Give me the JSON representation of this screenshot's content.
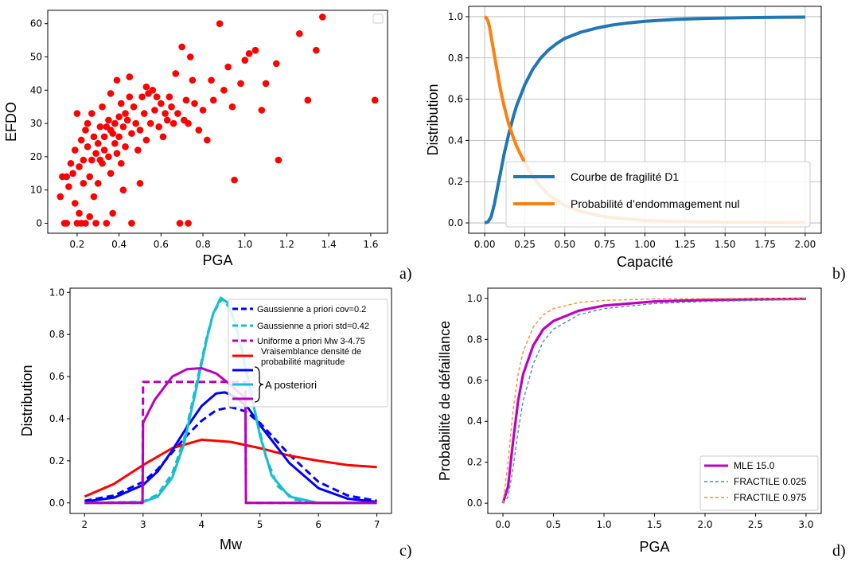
{
  "chart_data": [
    {
      "panel_label": "a)",
      "type": "scatter",
      "xlabel": "PGA",
      "ylabel": "EFDO",
      "xlim": [
        0.06,
        1.68
      ],
      "ylim": [
        -3,
        64
      ],
      "xticks": [
        "0.2",
        "0.4",
        "0.6",
        "0.8",
        "1.0",
        "1.2",
        "1.4",
        "1.6"
      ],
      "yticks": [
        "0",
        "10",
        "20",
        "30",
        "40",
        "50",
        "60"
      ],
      "grid": false,
      "marker_color": "#ff0000",
      "legend": "empty box, top-right",
      "series": [
        {
          "points": [
            [
              0.12,
              8
            ],
            [
              0.13,
              14
            ],
            [
              0.14,
              0
            ],
            [
              0.15,
              0
            ],
            [
              0.15,
              14
            ],
            [
              0.16,
              11
            ],
            [
              0.17,
              18
            ],
            [
              0.18,
              15
            ],
            [
              0.19,
              22
            ],
            [
              0.19,
              6
            ],
            [
              0.2,
              0
            ],
            [
              0.2,
              33
            ],
            [
              0.21,
              17
            ],
            [
              0.21,
              3
            ],
            [
              0.22,
              25
            ],
            [
              0.22,
              0
            ],
            [
              0.23,
              12
            ],
            [
              0.23,
              19
            ],
            [
              0.24,
              28
            ],
            [
              0.24,
              0
            ],
            [
              0.25,
              23
            ],
            [
              0.25,
              30
            ],
            [
              0.26,
              14
            ],
            [
              0.26,
              2
            ],
            [
              0.27,
              19
            ],
            [
              0.27,
              33
            ],
            [
              0.28,
              26
            ],
            [
              0.28,
              8
            ],
            [
              0.29,
              21
            ],
            [
              0.29,
              0
            ],
            [
              0.3,
              24
            ],
            [
              0.3,
              12
            ],
            [
              0.31,
              29
            ],
            [
              0.31,
              19
            ],
            [
              0.32,
              18
            ],
            [
              0.32,
              35
            ],
            [
              0.33,
              26
            ],
            [
              0.33,
              22
            ],
            [
              0.34,
              29
            ],
            [
              0.34,
              0
            ],
            [
              0.35,
              31
            ],
            [
              0.35,
              20
            ],
            [
              0.36,
              28
            ],
            [
              0.36,
              39
            ],
            [
              0.36,
              15
            ],
            [
              0.37,
              27
            ],
            [
              0.37,
              3
            ],
            [
              0.38,
              30
            ],
            [
              0.38,
              24
            ],
            [
              0.39,
              43
            ],
            [
              0.39,
              21
            ],
            [
              0.4,
              32
            ],
            [
              0.4,
              26
            ],
            [
              0.41,
              36
            ],
            [
              0.41,
              18
            ],
            [
              0.42,
              29
            ],
            [
              0.42,
              10
            ],
            [
              0.43,
              33
            ],
            [
              0.43,
              23
            ],
            [
              0.44,
              31
            ],
            [
              0.45,
              38
            ],
            [
              0.45,
              44
            ],
            [
              0.46,
              27
            ],
            [
              0.46,
              0
            ],
            [
              0.47,
              35
            ],
            [
              0.48,
              30
            ],
            [
              0.49,
              22
            ],
            [
              0.5,
              28
            ],
            [
              0.5,
              12
            ],
            [
              0.51,
              38
            ],
            [
              0.52,
              33
            ],
            [
              0.53,
              41
            ],
            [
              0.53,
              25
            ],
            [
              0.54,
              39
            ],
            [
              0.55,
              30
            ],
            [
              0.56,
              40
            ],
            [
              0.57,
              34
            ],
            [
              0.58,
              38
            ],
            [
              0.59,
              29
            ],
            [
              0.6,
              36
            ],
            [
              0.61,
              26
            ],
            [
              0.62,
              33
            ],
            [
              0.63,
              31
            ],
            [
              0.64,
              38
            ],
            [
              0.65,
              35
            ],
            [
              0.66,
              30
            ],
            [
              0.67,
              45
            ],
            [
              0.68,
              33
            ],
            [
              0.7,
              53
            ],
            [
              0.71,
              31
            ],
            [
              0.72,
              37
            ],
            [
              0.73,
              30
            ],
            [
              0.74,
              50
            ],
            [
              0.75,
              43
            ],
            [
              0.76,
              36
            ],
            [
              0.78,
              28
            ],
            [
              0.8,
              34
            ],
            [
              0.82,
              25
            ],
            [
              0.84,
              43
            ],
            [
              0.85,
              37
            ],
            [
              0.88,
              60
            ],
            [
              0.9,
              40
            ],
            [
              0.92,
              47
            ],
            [
              0.94,
              35
            ],
            [
              0.95,
              13
            ],
            [
              0.98,
              42
            ],
            [
              1.0,
              49
            ],
            [
              1.02,
              51
            ],
            [
              1.05,
              52
            ],
            [
              1.08,
              34
            ],
            [
              1.1,
              42
            ],
            [
              1.15,
              48
            ],
            [
              1.16,
              19
            ],
            [
              1.26,
              57
            ],
            [
              1.3,
              37
            ],
            [
              1.34,
              52
            ],
            [
              1.37,
              62
            ],
            [
              1.62,
              37
            ],
            [
              0.69,
              0
            ],
            [
              0.73,
              0
            ]
          ]
        }
      ]
    },
    {
      "panel_label": "b)",
      "type": "line",
      "xlabel": "Capacité",
      "ylabel": "Distribution",
      "xlim": [
        -0.1,
        2.1
      ],
      "ylim": [
        -0.05,
        1.05
      ],
      "xticks": [
        "0.00",
        "0.25",
        "0.50",
        "0.75",
        "1.00",
        "1.25",
        "1.50",
        "1.75",
        "2.00"
      ],
      "yticks": [
        "0.0",
        "0.2",
        "0.4",
        "0.6",
        "0.8",
        "1.0"
      ],
      "grid": true,
      "legend_position": "lower-right",
      "series": [
        {
          "name": "Courbe de fragilité D1",
          "color": "#1f77b4",
          "x": [
            0,
            0.02,
            0.04,
            0.06,
            0.08,
            0.1,
            0.12,
            0.15,
            0.18,
            0.2,
            0.25,
            0.3,
            0.35,
            0.4,
            0.45,
            0.5,
            0.6,
            0.7,
            0.8,
            0.9,
            1.0,
            1.2,
            1.4,
            1.6,
            1.8,
            2.0
          ],
          "y": [
            0,
            0.005,
            0.03,
            0.09,
            0.17,
            0.25,
            0.33,
            0.43,
            0.52,
            0.57,
            0.67,
            0.745,
            0.8,
            0.84,
            0.87,
            0.895,
            0.925,
            0.945,
            0.96,
            0.97,
            0.978,
            0.987,
            0.992,
            0.995,
            0.997,
            0.998
          ]
        },
        {
          "name": "Probabilité d’endommagement nul",
          "color": "#ff7f0e",
          "x": [
            0,
            0.01,
            0.02,
            0.03,
            0.05,
            0.07,
            0.1,
            0.12,
            0.15,
            0.18,
            0.2,
            0.25,
            0.3,
            0.35,
            0.4,
            0.5,
            0.6,
            0.75,
            0.9,
            1.0,
            1.25,
            1.5,
            1.75,
            2.0
          ],
          "y": [
            1,
            0.995,
            0.98,
            0.95,
            0.86,
            0.77,
            0.64,
            0.57,
            0.48,
            0.41,
            0.37,
            0.29,
            0.225,
            0.175,
            0.135,
            0.085,
            0.055,
            0.03,
            0.018,
            0.012,
            0.006,
            0.003,
            0.002,
            0.001
          ]
        }
      ]
    },
    {
      "panel_label": "c)",
      "type": "line",
      "xlabel": "Mw",
      "ylabel": "Distribution",
      "xlim": [
        1.75,
        7.25
      ],
      "ylim": [
        -0.05,
        1.02
      ],
      "xticks": [
        "2",
        "3",
        "4",
        "5",
        "6",
        "7"
      ],
      "yticks": [
        "0.0",
        "0.2",
        "0.4",
        "0.6",
        "0.8",
        "1.0"
      ],
      "grid": false,
      "legend_position": "top-right",
      "legend_bracket_label": "A posteriori",
      "series": [
        {
          "name": "Gaussienne a priori cov=0.2",
          "color": "#0000ff",
          "dashed": true,
          "x": [
            2,
            2.5,
            3,
            3.25,
            3.5,
            3.75,
            4,
            4.25,
            4.5,
            4.75,
            5,
            5.5,
            6,
            6.5,
            7
          ],
          "y": [
            0.01,
            0.035,
            0.1,
            0.16,
            0.24,
            0.32,
            0.39,
            0.44,
            0.455,
            0.435,
            0.38,
            0.23,
            0.1,
            0.035,
            0.01
          ]
        },
        {
          "name": "Gaussienne a priori std=0.42",
          "color": "#17becf",
          "dashed": true,
          "x": [
            2,
            3,
            3.25,
            3.5,
            3.7,
            3.9,
            4.1,
            4.2,
            4.35,
            4.5,
            4.7,
            4.9,
            5.1,
            5.3,
            5.6,
            6,
            7
          ],
          "y": [
            0,
            0.006,
            0.04,
            0.14,
            0.3,
            0.55,
            0.8,
            0.9,
            0.97,
            0.92,
            0.72,
            0.45,
            0.22,
            0.08,
            0.015,
            0,
            0
          ]
        },
        {
          "name": "Uniforme a priori Mw 3-4.75",
          "color": "#bb00bb",
          "dashed": true,
          "x": [
            2,
            2.99,
            3,
            4.75,
            4.76,
            7
          ],
          "y": [
            0,
            0,
            0.575,
            0.575,
            0,
            0
          ]
        },
        {
          "name": "Vraisemblance densité de probabilité magnitude",
          "color": "#ff0000",
          "dashed": false,
          "x": [
            2,
            2.5,
            3,
            3.5,
            4,
            4.5,
            5,
            5.5,
            6,
            6.5,
            7
          ],
          "y": [
            0.03,
            0.09,
            0.18,
            0.26,
            0.3,
            0.29,
            0.26,
            0.225,
            0.2,
            0.18,
            0.17
          ]
        },
        {
          "name": "",
          "color": "#0000ff",
          "dashed": false,
          "x": [
            2,
            2.5,
            3,
            3.25,
            3.5,
            3.75,
            4,
            4.25,
            4.4,
            4.6,
            4.8,
            5,
            5.25,
            5.5,
            6,
            6.5,
            7
          ],
          "y": [
            0.006,
            0.025,
            0.085,
            0.15,
            0.25,
            0.36,
            0.46,
            0.52,
            0.525,
            0.5,
            0.45,
            0.37,
            0.28,
            0.19,
            0.07,
            0.02,
            0.005
          ]
        },
        {
          "name": "",
          "color": "#17becf",
          "dashed": false,
          "x": [
            2,
            3,
            3.25,
            3.5,
            3.7,
            3.9,
            4.1,
            4.2,
            4.33,
            4.45,
            4.6,
            4.8,
            5,
            5.2,
            5.5,
            6,
            7
          ],
          "y": [
            0,
            0.004,
            0.03,
            0.12,
            0.28,
            0.53,
            0.79,
            0.9,
            0.975,
            0.95,
            0.83,
            0.58,
            0.32,
            0.13,
            0.03,
            0,
            0
          ]
        },
        {
          "name": "",
          "color": "#bb00bb",
          "dashed": false,
          "x": [
            2,
            2.99,
            3,
            3.2,
            3.5,
            3.75,
            4,
            4.25,
            4.5,
            4.74,
            4.75,
            4.76,
            7
          ],
          "y": [
            0,
            0,
            0.38,
            0.49,
            0.6,
            0.635,
            0.64,
            0.615,
            0.56,
            0.5,
            0.5,
            0,
            0
          ]
        }
      ]
    },
    {
      "panel_label": "d)",
      "type": "line",
      "xlabel": "PGA",
      "ylabel": "Probabilité de défaillance",
      "xlim": [
        -0.15,
        3.15
      ],
      "ylim": [
        -0.05,
        1.05
      ],
      "xticks": [
        "0.0",
        "0.5",
        "1.0",
        "1.5",
        "2.0",
        "2.5",
        "3.0"
      ],
      "yticks": [
        "0.0",
        "0.2",
        "0.4",
        "0.6",
        "0.8",
        "1.0"
      ],
      "grid": false,
      "legend_position": "lower-right",
      "series": [
        {
          "name": "MLE 15.0",
          "color": "#c000c0",
          "dashed": false,
          "x": [
            0,
            0.05,
            0.1,
            0.15,
            0.2,
            0.3,
            0.4,
            0.5,
            0.75,
            1,
            1.5,
            2,
            2.5,
            3
          ],
          "y": [
            0,
            0.08,
            0.3,
            0.5,
            0.63,
            0.77,
            0.85,
            0.89,
            0.94,
            0.965,
            0.985,
            0.992,
            0.996,
            0.998
          ]
        },
        {
          "name": "FRACTILE 0.025",
          "color": "#4a88c8",
          "dashed": true,
          "x": [
            0,
            0.05,
            0.1,
            0.15,
            0.2,
            0.3,
            0.4,
            0.5,
            0.75,
            1,
            1.5,
            2,
            2.5,
            3
          ],
          "y": [
            0,
            0.03,
            0.17,
            0.35,
            0.5,
            0.68,
            0.79,
            0.85,
            0.92,
            0.95,
            0.975,
            0.985,
            0.99,
            0.995
          ]
        },
        {
          "name": "FRACTILE 0.975",
          "color": "#ff8c2a",
          "dashed": true,
          "x": [
            0,
            0.05,
            0.1,
            0.15,
            0.2,
            0.3,
            0.4,
            0.5,
            0.75,
            1,
            1.5,
            2,
            2.5,
            3
          ],
          "y": [
            0,
            0.2,
            0.45,
            0.63,
            0.74,
            0.86,
            0.92,
            0.95,
            0.98,
            0.99,
            0.997,
            0.999,
            1,
            1
          ]
        }
      ]
    }
  ]
}
